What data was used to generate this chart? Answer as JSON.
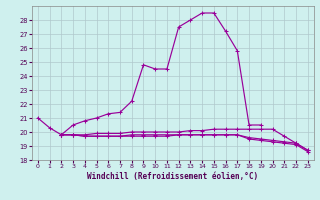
{
  "title": "",
  "xlabel": "Windchill (Refroidissement éolien,°C)",
  "bg_color": "#cff0ee",
  "grid_color": "#b0c8cc",
  "line_color": "#990099",
  "x_hours": [
    0,
    1,
    2,
    3,
    4,
    5,
    6,
    7,
    8,
    9,
    10,
    11,
    12,
    13,
    14,
    15,
    16,
    17,
    18,
    19,
    20,
    21,
    22,
    23
  ],
  "series_main": [
    21.0,
    20.3,
    19.8,
    null,
    null,
    null,
    null,
    null,
    null,
    null,
    null,
    null,
    null,
    null,
    null,
    null,
    null,
    null,
    null,
    null,
    null,
    null,
    null,
    null
  ],
  "series_up": [
    null,
    null,
    19.8,
    20.5,
    20.8,
    21.0,
    21.3,
    21.4,
    22.2,
    24.8,
    24.5,
    24.5,
    27.5,
    28.0,
    28.5,
    28.5,
    27.2,
    25.8,
    20.5,
    20.5,
    null,
    null,
    null,
    null
  ],
  "series2": [
    null,
    null,
    19.8,
    19.8,
    19.8,
    19.9,
    19.9,
    19.9,
    20.0,
    20.0,
    20.0,
    20.0,
    20.0,
    20.1,
    20.1,
    20.2,
    20.2,
    20.2,
    20.2,
    20.2,
    20.2,
    19.7,
    19.2,
    18.7
  ],
  "series3": [
    null,
    null,
    19.8,
    19.8,
    19.7,
    19.7,
    19.7,
    19.7,
    19.8,
    19.8,
    19.8,
    19.8,
    19.8,
    19.8,
    19.8,
    19.8,
    19.8,
    19.8,
    19.6,
    19.5,
    19.4,
    19.3,
    19.2,
    18.7
  ],
  "series4": [
    null,
    null,
    19.8,
    19.8,
    19.7,
    19.7,
    19.7,
    19.7,
    19.7,
    19.7,
    19.7,
    19.7,
    19.8,
    19.8,
    19.8,
    19.8,
    19.8,
    19.8,
    19.5,
    19.4,
    19.3,
    19.2,
    19.1,
    18.6
  ],
  "ylim": [
    18,
    29
  ],
  "yticks": [
    18,
    19,
    20,
    21,
    22,
    23,
    24,
    25,
    26,
    27,
    28
  ],
  "xlim": [
    -0.5,
    23.5
  ]
}
